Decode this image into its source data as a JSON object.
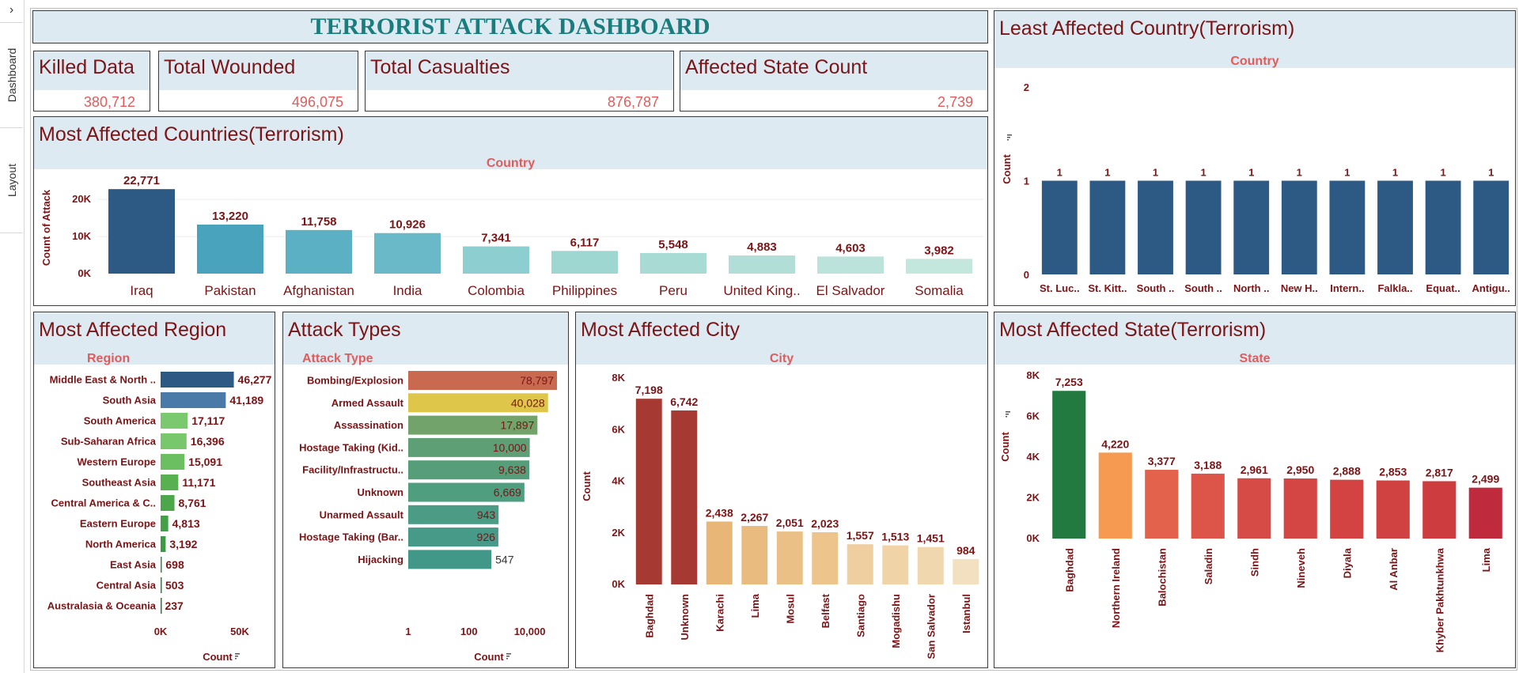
{
  "sidebar": {
    "toggle_icon": "chevron-right-icon",
    "tabs": [
      "Dashboard",
      "Layout"
    ]
  },
  "dashboard_title": "TERRORIST ATTACK DASHBOARD",
  "kpis": {
    "killed": {
      "label": "Killed Data",
      "value": "380,712"
    },
    "wounded": {
      "label": "Total Wounded",
      "value": "496,075"
    },
    "casualties": {
      "label": "Total Casualties",
      "value": "876,787"
    },
    "states": {
      "label": "Affected State Count",
      "value": "2,739"
    }
  },
  "panels": {
    "countries": {
      "title": "Most Affected Countries(Terrorism)",
      "subtitle": "Country"
    },
    "least": {
      "title": "Least Affected Country(Terrorism)",
      "subtitle": "Country"
    },
    "region": {
      "title": "Most Affected Region",
      "subtitle": "Region"
    },
    "attack": {
      "title": "Attack Types",
      "subtitle": "Attack Type"
    },
    "city": {
      "title": "Most Affected City",
      "subtitle": "City"
    },
    "state": {
      "title": "Most Affected State(Terrorism)",
      "subtitle": "State"
    }
  },
  "colors": {
    "title": "#7b1416",
    "accent": "#e05c5c",
    "header_bg": "#deeaf2",
    "dashboard_title": "#1a7d7d"
  },
  "chart_data": [
    {
      "id": "countries",
      "type": "bar",
      "categories": [
        "Iraq",
        "Pakistan",
        "Afghanistan",
        "India",
        "Colombia",
        "Philippines",
        "Peru",
        "United King..",
        "El Salvador",
        "Somalia"
      ],
      "values": [
        22771,
        13220,
        11758,
        10926,
        7341,
        6117,
        5548,
        4883,
        4603,
        3982
      ],
      "labels": [
        "22,771",
        "13,220",
        "11,758",
        "10,926",
        "7,341",
        "6,117",
        "5,548",
        "4,883",
        "4,603",
        "3,982"
      ],
      "ylabel": "Count of Attack",
      "yticks": [
        "0K",
        "10K",
        "20K"
      ],
      "ytick_values": [
        0,
        10000,
        20000
      ],
      "ylim": [
        0,
        26000
      ],
      "colors": [
        "#2d5a85",
        "#4aa3bd",
        "#5cb0c4",
        "#69b9c9",
        "#8dcfd0",
        "#9ed6d2",
        "#a9dbd5",
        "#b2ded8",
        "#bbe3db",
        "#c3e6dd"
      ]
    },
    {
      "id": "least",
      "type": "bar",
      "categories": [
        "St. Luc..",
        "St. Kitt..",
        "South ..",
        "South ..",
        "North ..",
        "New H..",
        "Intern..",
        "Falkla..",
        "Equat..",
        "Antigu.."
      ],
      "values": [
        1,
        1,
        1,
        1,
        1,
        1,
        1,
        1,
        1,
        1
      ],
      "labels": [
        "1",
        "1",
        "1",
        "1",
        "1",
        "1",
        "1",
        "1",
        "1",
        "1"
      ],
      "ylabel": "Count",
      "yticks": [
        "0",
        "1",
        "2"
      ],
      "ytick_values": [
        0,
        1,
        2
      ],
      "ylim": [
        0,
        2
      ],
      "colors": [
        "#2d5a85"
      ]
    },
    {
      "id": "region",
      "type": "bar",
      "orientation": "horizontal",
      "categories": [
        "Middle East & North ..",
        "South Asia",
        "South America",
        "Sub-Saharan Africa",
        "Western Europe",
        "Southeast Asia",
        "Central America & C..",
        "Eastern Europe",
        "North America",
        "East Asia",
        "Central Asia",
        "Australasia & Oceania"
      ],
      "values": [
        46277,
        41189,
        17117,
        16396,
        15091,
        11171,
        8761,
        4813,
        3192,
        698,
        503,
        237
      ],
      "labels": [
        "46,277",
        "41,189",
        "17,117",
        "16,396",
        "15,091",
        "11,171",
        "8,761",
        "4,813",
        "3,192",
        "698",
        "503",
        "237"
      ],
      "xlabel": "Count",
      "xticks": [
        "0K",
        "50K"
      ],
      "xtick_values": [
        0,
        50000
      ],
      "xlim": [
        0,
        70000
      ],
      "colors": [
        "#2d5a85",
        "#4a7aa8",
        "#7bc96f",
        "#78c76c",
        "#6cbf60",
        "#58b050",
        "#4ca64a",
        "#43a047",
        "#3c9a44",
        "#2f8a3c",
        "#2a833a",
        "#267c37"
      ]
    },
    {
      "id": "attack",
      "type": "bar",
      "orientation": "horizontal",
      "xscale": "log",
      "categories": [
        "Bombing/Explosion",
        "Armed Assault",
        "Assassination",
        "Hostage Taking (Kid..",
        "Facility/Infrastructu..",
        "Unknown",
        "Unarmed Assault",
        "Hostage Taking (Bar..",
        "Hijacking"
      ],
      "values": [
        78797,
        40028,
        17897,
        10000,
        9638,
        6669,
        943,
        926,
        547
      ],
      "labels": [
        "78,797",
        "40,028",
        "17,897",
        "10,000",
        "9,638",
        "6,669",
        "943",
        "926",
        "547"
      ],
      "xlabel": "Count",
      "xticks": [
        "1",
        "100",
        "10,000"
      ],
      "xtick_values": [
        1,
        100,
        10000
      ],
      "xlim": [
        1,
        100000
      ],
      "colors": [
        "#c96a50",
        "#dec64a",
        "#72a36a",
        "#5e9f75",
        "#569e7a",
        "#4f9e80",
        "#4a9c85",
        "#469a87",
        "#429888"
      ]
    },
    {
      "id": "city",
      "type": "bar",
      "categories": [
        "Baghdad",
        "Unknown",
        "Karachi",
        "Lima",
        "Mosul",
        "Belfast",
        "Santiago",
        "Mogadishu",
        "San Salvador",
        "Istanbul"
      ],
      "values": [
        7198,
        6742,
        2438,
        2267,
        2051,
        2023,
        1557,
        1513,
        1451,
        984
      ],
      "labels": [
        "7,198",
        "6,742",
        "2,438",
        "2,267",
        "2,051",
        "2,023",
        "1,557",
        "1,513",
        "1,451",
        "984"
      ],
      "ylabel": "Count",
      "yticks": [
        "0K",
        "2K",
        "4K",
        "6K",
        "8K"
      ],
      "ytick_values": [
        0,
        2000,
        4000,
        6000,
        8000
      ],
      "ylim": [
        0,
        8000
      ],
      "colors": [
        "#a63a33",
        "#a63a33",
        "#e8b778",
        "#e9bb7e",
        "#ebc086",
        "#ecc48c",
        "#efcf9f",
        "#f0d3a6",
        "#f1d7ae",
        "#f3e0c1"
      ]
    },
    {
      "id": "state",
      "type": "bar",
      "categories": [
        "Baghdad",
        "Northern Ireland",
        "Balochistan",
        "Saladin",
        "Sindh",
        "Nineveh",
        "Diyala",
        "Al Anbar",
        "Khyber Pakhtunkhwa",
        "Lima"
      ],
      "values": [
        7253,
        4220,
        3377,
        3188,
        2961,
        2950,
        2888,
        2853,
        2817,
        2499
      ],
      "labels": [
        "7,253",
        "4,220",
        "3,377",
        "3,188",
        "2,961",
        "2,950",
        "2,888",
        "2,853",
        "2,817",
        "2,499"
      ],
      "ylabel": "Count",
      "yticks": [
        "0K",
        "2K",
        "4K",
        "6K",
        "8K"
      ],
      "ytick_values": [
        0,
        2000,
        4000,
        6000,
        8000
      ],
      "ylim": [
        0,
        8000
      ],
      "colors": [
        "#237a40",
        "#f59a50",
        "#e2624b",
        "#dc5548",
        "#d64b45",
        "#d44644",
        "#d24342",
        "#d04141",
        "#cd3d40",
        "#bf2b3d"
      ]
    }
  ]
}
